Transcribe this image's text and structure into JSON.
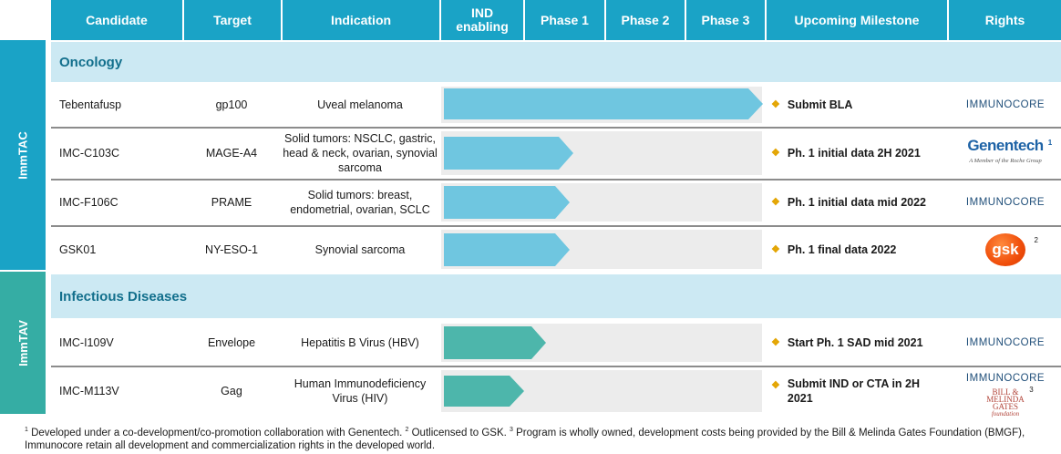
{
  "colors": {
    "header": "#1aa3c6",
    "immtac_band": "#1aa3c6",
    "immtav_band": "#35ada4",
    "onc_arrow": "#6fc6e0",
    "inf_arrow": "#4db6ab",
    "bullet": "#e3a400"
  },
  "headers": {
    "candidate": "Candidate",
    "target": "Target",
    "indication": "Indication",
    "ind": "IND enabling",
    "phase1": "Phase 1",
    "phase2": "Phase 2",
    "phase3": "Phase 3",
    "milestone": "Upcoming Milestone",
    "rights": "Rights"
  },
  "side_labels": {
    "immtac": "ImmTAC",
    "immtav": "ImmTAV"
  },
  "sections": {
    "oncology": "Oncology",
    "infectious": "Infectious Diseases"
  },
  "rows": [
    {
      "candidate": "Tebentafusp",
      "target": "gp100",
      "indication": "Uveal melanoma",
      "stage": "Phase 3 (beyond)",
      "progress": 1.0,
      "milestone": "Submit BLA",
      "rights": "IMMUNOCORE",
      "rights_logo": "immunocore-logo"
    },
    {
      "candidate": "IMC-C103C",
      "target": "MAGE-A4",
      "indication": "Solid tumors: NSCLC, gastric, head & neck, ovarian, synovial sarcoma",
      "stage": "Phase 1",
      "progress": 0.41,
      "milestone": "Ph. 1 initial data 2H 2021",
      "rights": "Genentech",
      "rights_sub": "A Member of the Roche Group",
      "rights_sup": "1",
      "rights_logo": "genentech-logo"
    },
    {
      "candidate": "IMC-F106C",
      "target": "PRAME",
      "indication": "Solid tumors: breast, endometrial, ovarian, SCLC",
      "stage": "Phase 1",
      "progress": 0.4,
      "milestone": "Ph. 1 initial data mid 2022",
      "rights": "IMMUNOCORE",
      "rights_logo": "immunocore-logo"
    },
    {
      "candidate": "GSK01",
      "target": "NY-ESO-1",
      "indication": "Synovial sarcoma",
      "stage": "Phase 1",
      "progress": 0.4,
      "milestone": "Ph. 1 final data 2022",
      "rights": "gsk",
      "rights_sup": "2",
      "rights_logo": "gsk-logo"
    },
    {
      "candidate": "IMC-I109V",
      "target": "Envelope",
      "indication": "Hepatitis B Virus (HBV)",
      "stage": "Phase 1",
      "progress": 0.32,
      "milestone": "Start Ph. 1 SAD mid 2021",
      "rights": "IMMUNOCORE",
      "rights_logo": "immunocore-logo"
    },
    {
      "candidate": "IMC-M113V",
      "target": "Gag",
      "indication": "Human Immunodeficiency Virus (HIV)",
      "stage": "IND enabling",
      "progress": 0.25,
      "milestone": "Submit IND or CTA in 2H 2021",
      "rights": "IMMUNOCORE",
      "rights_sub_lines": [
        "BILL &",
        "MELINDA",
        "GATES",
        "foundation"
      ],
      "rights_sup": "3",
      "rights_logo": "immunocore-bmgf-logo"
    }
  ],
  "footnote": {
    "n1": "1",
    "t1": " Developed under a co-development/co-promotion collaboration with Genentech. ",
    "n2": "2",
    "t2": " Outlicensed to GSK. ",
    "n3": "3",
    "t3": " Program is wholly owned, development costs being provided by the Bill & Melinda Gates Foundation (BMGF), Immunocore retain all development and commercialization rights in the developed world."
  }
}
